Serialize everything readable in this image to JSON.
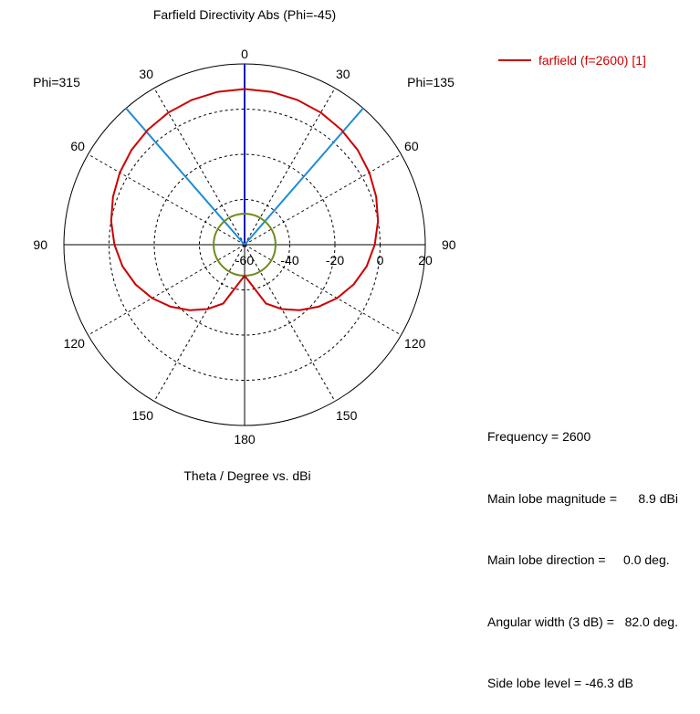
{
  "chart_data": {
    "type": "polar",
    "title": "Farfield Directivity Abs (Phi=-45)",
    "xlabel": "Theta / Degree vs. dBi",
    "left_half_label": "Phi=315",
    "right_half_label": "Phi=135",
    "radial_tick_labels": [
      "-60",
      "-40",
      "-20",
      "0",
      "20"
    ],
    "radial_range": [
      -60,
      20
    ],
    "angle_tick_labels": {
      "top": "0",
      "upper_left": "30",
      "upper_right": "30",
      "left_60": "60",
      "right_60": "60",
      "left_90": "90",
      "right_90": "90",
      "left_120": "120",
      "right_120": "120",
      "left_150": "150",
      "right_150": "150",
      "bottom": "180"
    },
    "legend": [
      "farfield (f=2600) [1]"
    ],
    "legend_placement": "top-right",
    "series": [
      {
        "name": "farfield (f=2600) [1]",
        "color": "#cc0000",
        "theta_deg": [
          0,
          10,
          20,
          30,
          40,
          50,
          60,
          70,
          80,
          90,
          100,
          110,
          120,
          130,
          140,
          150,
          160,
          170,
          180
        ],
        "directivity_dbi": [
          8.9,
          8.7,
          8.2,
          7.5,
          6.5,
          5.3,
          3.8,
          2.0,
          0.0,
          -2.4,
          -5.1,
          -8.6,
          -12.7,
          -17.3,
          -22.2,
          -27.1,
          -32.3,
          -42.0,
          -46.3
        ]
      }
    ],
    "overlays": [
      {
        "label": "main lobe direction",
        "color": "#1414b4",
        "theta_deg": 0
      },
      {
        "label": "3 dB beamwidth",
        "color": "#1e8cd6",
        "theta_deg": 41
      },
      {
        "label": "side lobe level",
        "color": "#6e8c1e",
        "value_dbi": -46.3
      }
    ],
    "grid": true
  },
  "info": [
    "Frequency = 2600",
    "Main lobe magnitude =      8.9 dBi",
    "Main lobe direction =     0.0 deg.",
    "Angular width (3 dB) =   82.0 deg.",
    "Side lobe level = -46.3 dB"
  ]
}
